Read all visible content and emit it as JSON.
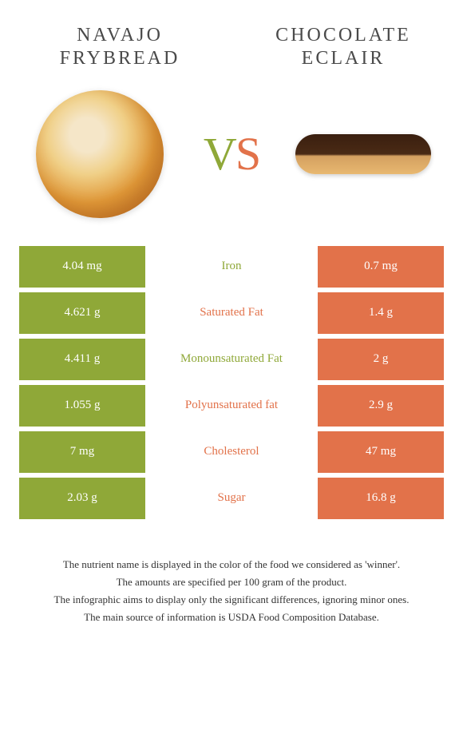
{
  "header": {
    "left_title": "NAVAJO FRYBREAD",
    "right_title": "CHOCOLATE ECLAIR",
    "vs_v": "V",
    "vs_s": "S"
  },
  "colors": {
    "left": "#8fa838",
    "right": "#e2724a",
    "background": "#ffffff"
  },
  "rows": [
    {
      "left": "4.04 mg",
      "label": "Iron",
      "right": "0.7 mg",
      "winner": "left"
    },
    {
      "left": "4.621 g",
      "label": "Saturated Fat",
      "right": "1.4 g",
      "winner": "right"
    },
    {
      "left": "4.411 g",
      "label": "Monounsaturated Fat",
      "right": "2 g",
      "winner": "left"
    },
    {
      "left": "1.055 g",
      "label": "Polyunsaturated fat",
      "right": "2.9 g",
      "winner": "right"
    },
    {
      "left": "7 mg",
      "label": "Cholesterol",
      "right": "47 mg",
      "winner": "right"
    },
    {
      "left": "2.03 g",
      "label": "Sugar",
      "right": "16.8 g",
      "winner": "right"
    }
  ],
  "footer": {
    "line1": "The nutrient name is displayed in the color of the food we considered as 'winner'.",
    "line2": "The amounts are specified per 100 gram of the product.",
    "line3": "The infographic aims to display only the significant differences, ignoring minor ones.",
    "line4": "The main source of information is USDA Food Composition Database."
  }
}
